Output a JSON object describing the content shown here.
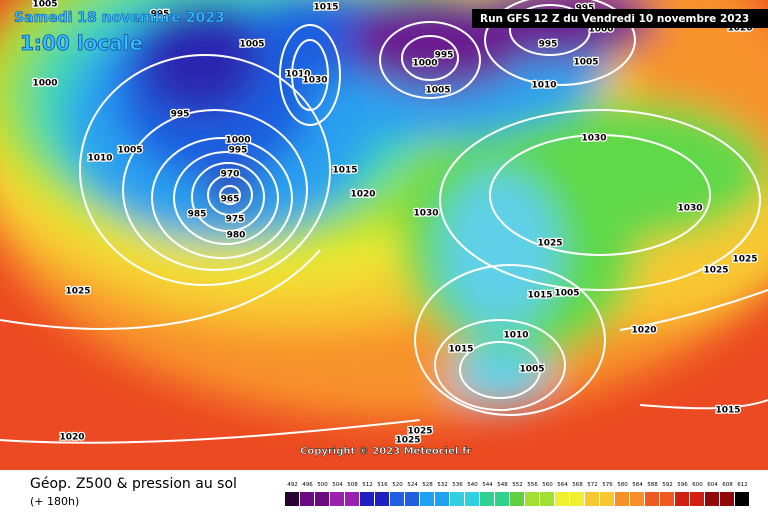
{
  "header": {
    "date": "Samedi 18 novembre 2023",
    "time": "1:00 locale",
    "run": "Run GFS 12 Z du Vendredi 10 novembre 2023"
  },
  "copyright": "Copyright © 2023 Meteociel.fr",
  "footer": {
    "title": "Géop. Z500 & pression au sol",
    "lead": "(+ 180h)"
  },
  "scale": {
    "labels": [
      492,
      496,
      500,
      504,
      508,
      512,
      516,
      520,
      524,
      528,
      532,
      536,
      540,
      544,
      548,
      552,
      556,
      560,
      564,
      568,
      572,
      576,
      580,
      584,
      588,
      592,
      596,
      600,
      604,
      608,
      612
    ]
  },
  "isobars": [
    {
      "label": "1005"
    },
    {
      "label": "1000"
    },
    {
      "label": "1005"
    },
    {
      "label": "1010"
    },
    {
      "label": "995"
    },
    {
      "label": "1000"
    },
    {
      "label": "995"
    },
    {
      "label": "970"
    },
    {
      "label": "965"
    },
    {
      "label": "985"
    },
    {
      "label": "975"
    },
    {
      "label": "980"
    },
    {
      "label": "1015"
    },
    {
      "label": "1020"
    },
    {
      "label": "1030"
    },
    {
      "label": "1015"
    },
    {
      "label": "1010"
    },
    {
      "label": "1030"
    },
    {
      "label": "1000"
    },
    {
      "label": "995"
    },
    {
      "label": "1005"
    },
    {
      "label": "995"
    },
    {
      "label": "1005"
    },
    {
      "label": "1010"
    },
    {
      "label": "1030"
    },
    {
      "label": "1030"
    },
    {
      "label": "1025"
    },
    {
      "label": "1025"
    },
    {
      "label": "1025"
    },
    {
      "label": "1015"
    },
    {
      "label": "1005"
    },
    {
      "label": "1010"
    },
    {
      "label": "1015"
    },
    {
      "label": "1005"
    },
    {
      "label": "1020"
    },
    {
      "label": "1015"
    },
    {
      "label": "1025"
    },
    {
      "label": "1020"
    },
    {
      "label": "1025"
    },
    {
      "label": "1025"
    },
    {
      "label": "1000"
    },
    {
      "label": "1020"
    },
    {
      "label": "995"
    },
    {
      "label": "1005"
    },
    {
      "label": "995"
    }
  ]
}
